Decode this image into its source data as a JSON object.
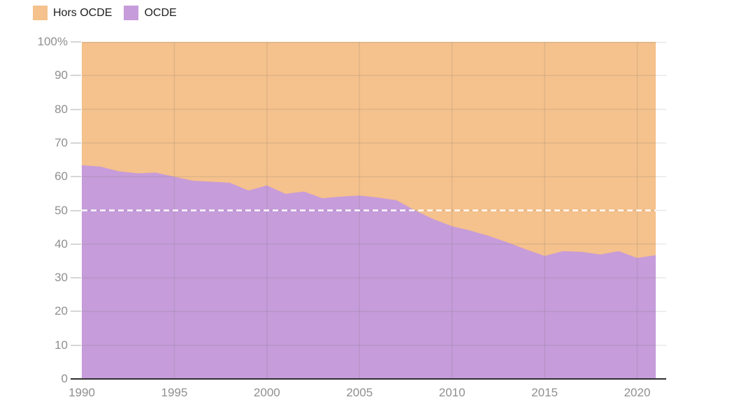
{
  "legend": {
    "items": [
      {
        "label": "Hors OCDE",
        "color": "#F5C18C"
      },
      {
        "label": "OCDE",
        "color": "#C69CDA"
      }
    ]
  },
  "colors": {
    "background": "#ffffff",
    "grid": "rgba(110,110,110,0.16)",
    "axis_line": "#2f2f2f",
    "tick": "#d6d6d6",
    "axis_label": "#8f8f8f",
    "legend_text": "#202020",
    "reference_line": "#ffffff"
  },
  "chart_data": {
    "type": "area",
    "stacked": "percent",
    "grid": true,
    "legend_position": "top-left",
    "xlim": [
      1990,
      2021
    ],
    "ylim": [
      0,
      100
    ],
    "x": [
      1990,
      1991,
      1992,
      1993,
      1994,
      1995,
      1996,
      1997,
      1998,
      1999,
      2000,
      2001,
      2002,
      2003,
      2004,
      2005,
      2006,
      2007,
      2008,
      2009,
      2010,
      2011,
      2012,
      2013,
      2014,
      2015,
      2016,
      2017,
      2018,
      2019,
      2020,
      2021
    ],
    "series": [
      {
        "name": "Hors OCDE",
        "color": "#F5C18C",
        "values": [
          36.6,
          37.0,
          38.4,
          39.0,
          38.8,
          40.0,
          41.2,
          41.5,
          41.8,
          44.1,
          42.6,
          45.1,
          44.4,
          46.4,
          45.9,
          45.6,
          46.2,
          47.0,
          50.0,
          52.6,
          54.7,
          56.0,
          57.6,
          59.5,
          61.6,
          63.5,
          62.1,
          62.3,
          63.1,
          62.1,
          64.1,
          63.3
        ]
      },
      {
        "name": "OCDE",
        "color": "#C69CDA",
        "values": [
          63.4,
          63.0,
          61.6,
          61.0,
          61.2,
          60.0,
          58.8,
          58.5,
          58.2,
          55.9,
          57.4,
          54.9,
          55.6,
          53.6,
          54.1,
          54.4,
          53.8,
          53.0,
          50.0,
          47.4,
          45.3,
          44.0,
          42.4,
          40.5,
          38.4,
          36.5,
          37.9,
          37.7,
          36.9,
          37.9,
          35.9,
          36.7
        ]
      }
    ],
    "y_ticks": [
      "100%",
      "90",
      "80",
      "70",
      "60",
      "50",
      "40",
      "30",
      "20",
      "10",
      "0"
    ],
    "x_ticks": [
      "1990",
      "1995",
      "2000",
      "2005",
      "2010",
      "2015",
      "2020"
    ],
    "reference_line": {
      "value": 50,
      "style": "dashed",
      "color": "#ffffff"
    }
  }
}
